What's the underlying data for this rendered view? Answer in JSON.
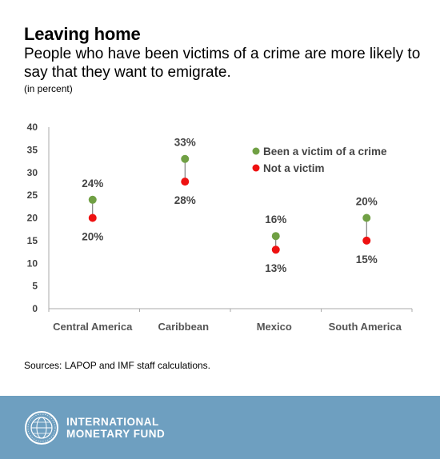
{
  "header": {
    "title": "Leaving home",
    "subtitle": "People who have been victims of a crime are more likely to say that they want to emigrate.",
    "note": "(in percent)"
  },
  "source": "Sources: LAPOP and IMF staff calculations.",
  "footer": {
    "org_line1": "INTERNATIONAL",
    "org_line2": "MONETARY FUND",
    "logo_icon": "imf-seal-icon"
  },
  "chart_data": {
    "type": "scatter",
    "categories": [
      "Central America",
      "Caribbean",
      "Mexico",
      "South America"
    ],
    "series": [
      {
        "name": "Been a victim of a crime",
        "color": "#70a044",
        "values": [
          24,
          33,
          16,
          20
        ],
        "labels": [
          "24%",
          "33%",
          "16%",
          "20%"
        ]
      },
      {
        "name": "Not a victim",
        "color": "#ee1111",
        "values": [
          20,
          28,
          13,
          15
        ],
        "labels": [
          "20%",
          "28%",
          "13%",
          "15%"
        ]
      }
    ],
    "ylim": [
      0,
      40
    ],
    "yticks": [
      0,
      5,
      10,
      15,
      20,
      25,
      30,
      35,
      40
    ],
    "connector_lines": true,
    "grid": false,
    "legend_position": "top-right",
    "xlabel": "",
    "ylabel": ""
  }
}
